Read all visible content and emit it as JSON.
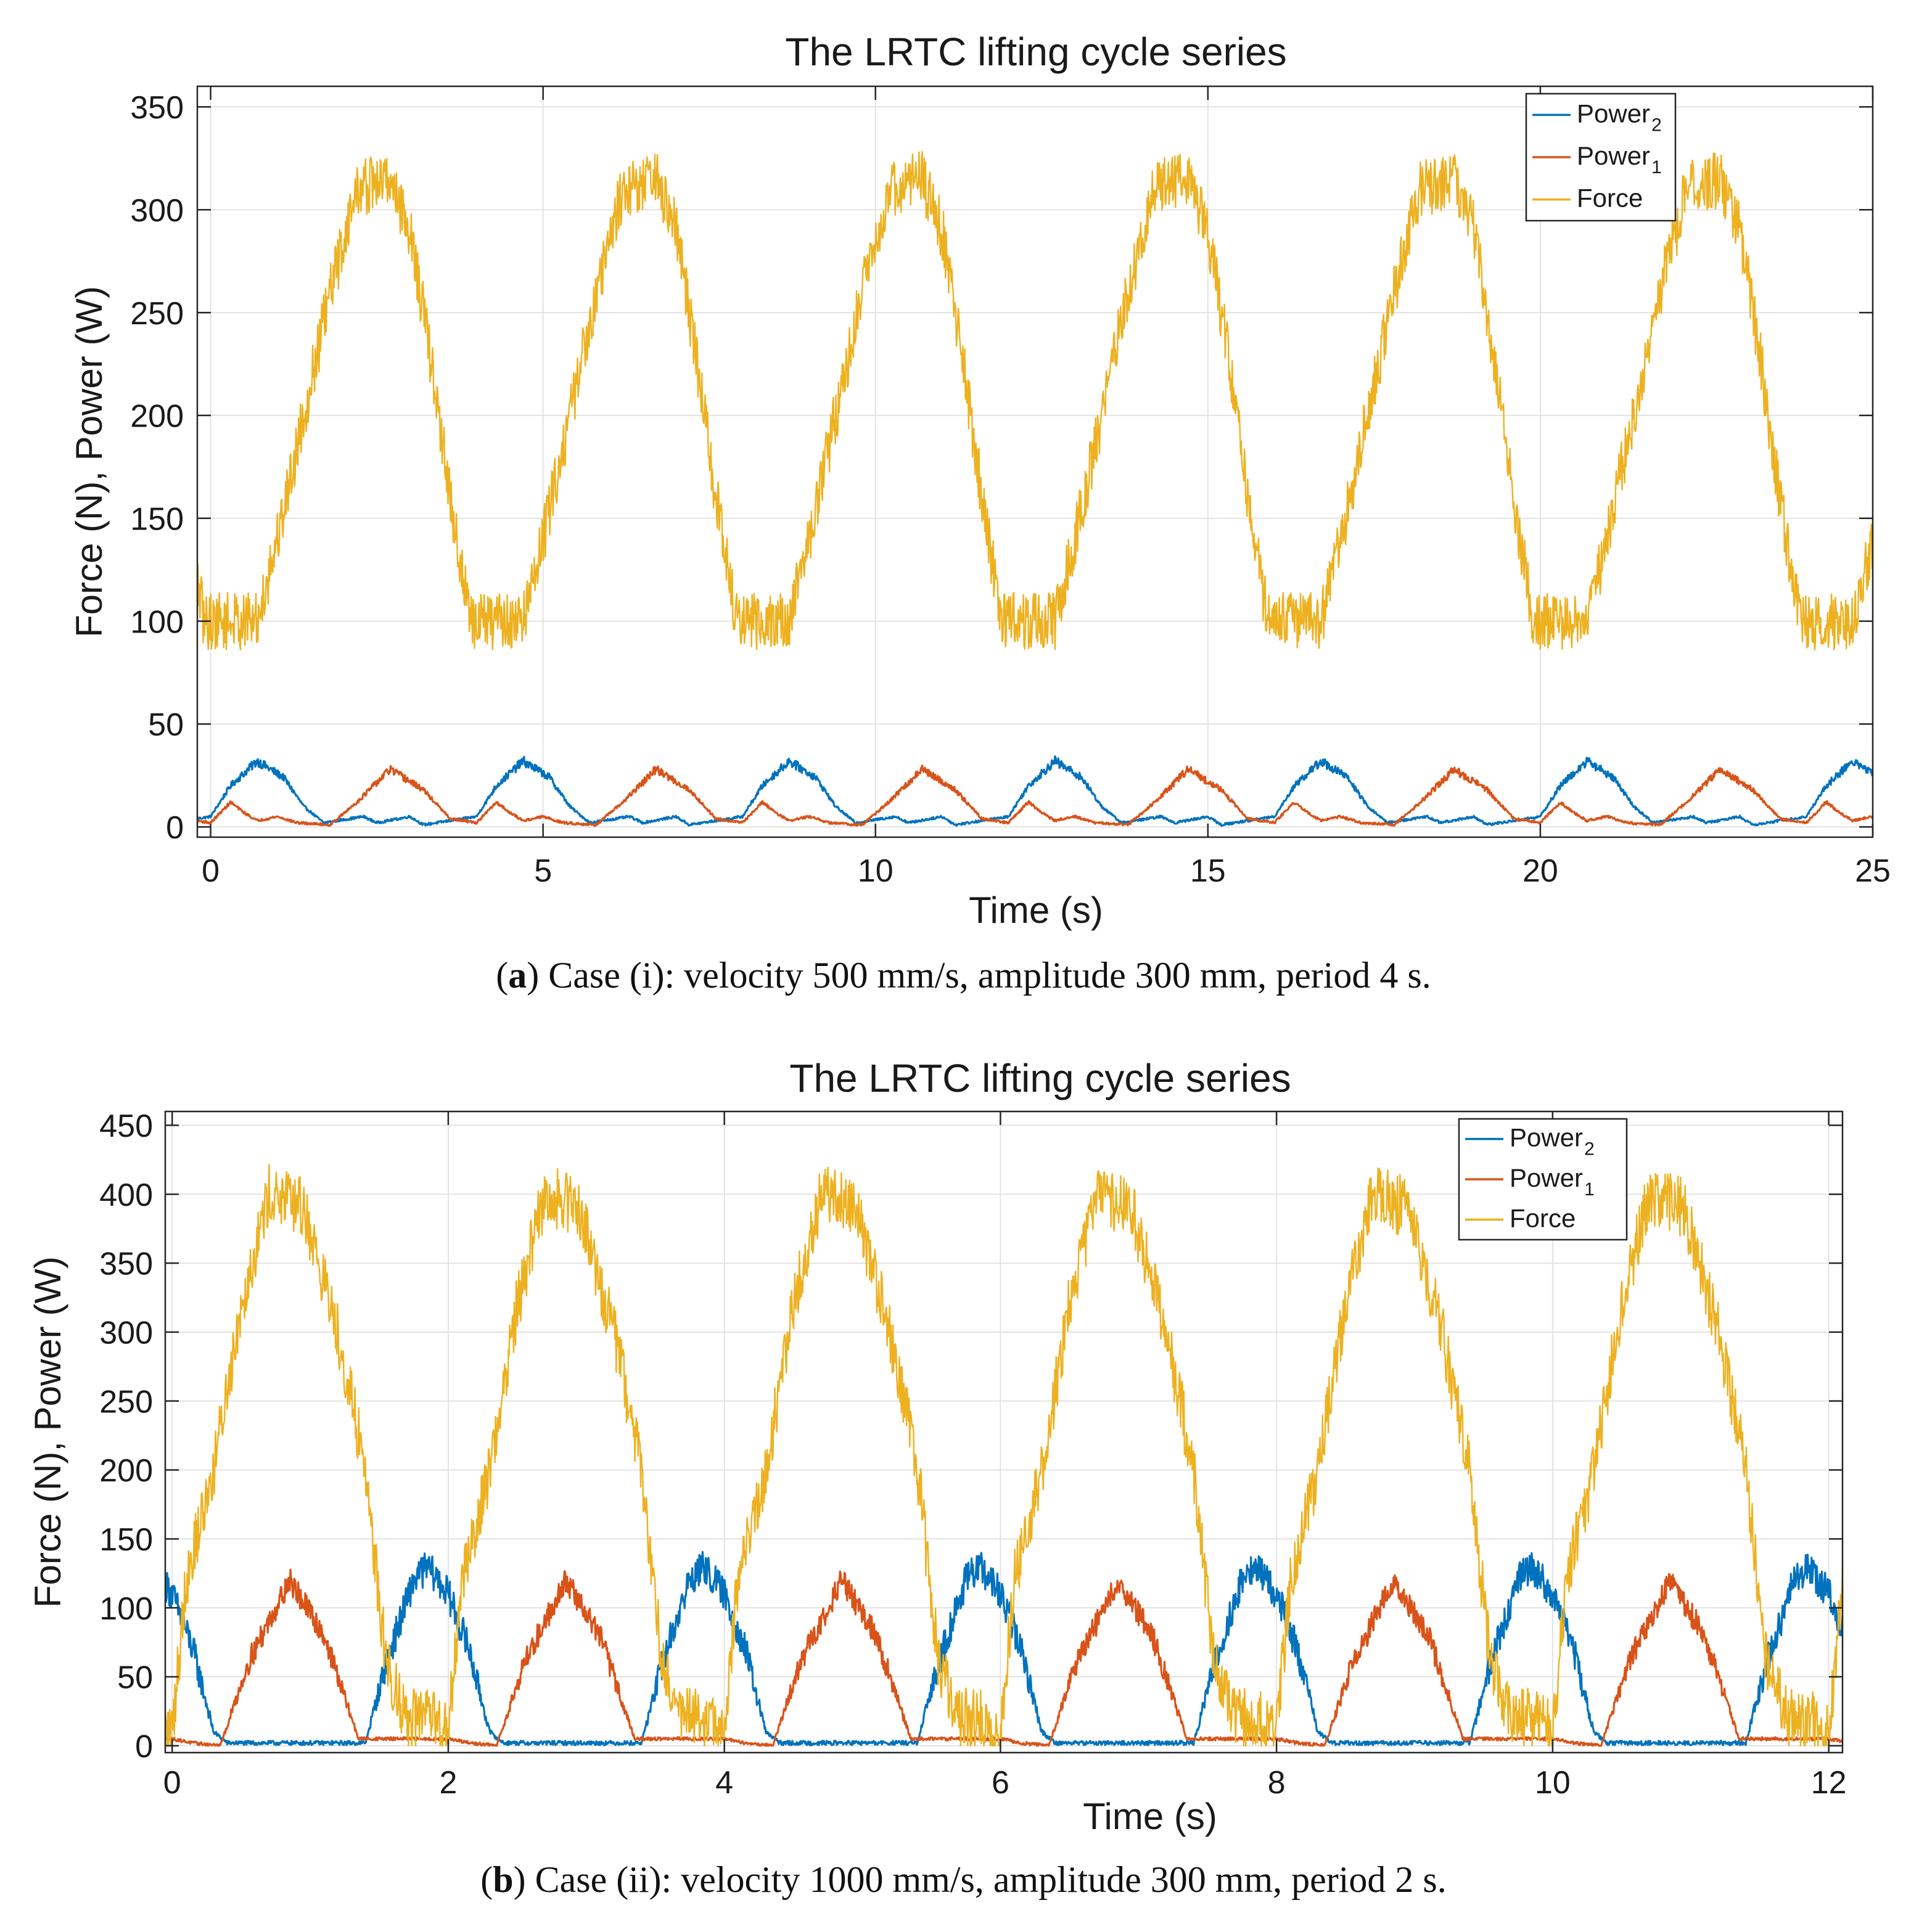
{
  "figure": {
    "captions": [
      {
        "label": "a",
        "text": "Case (i): velocity 500 mm/s, amplitude 300 mm, period 4 s."
      },
      {
        "label": "b",
        "text": "Case (ii): velocity 1000 mm/s, amplitude 300 mm, period 2 s."
      }
    ]
  },
  "colors": {
    "power2": "#0072BD",
    "power1": "#D95319",
    "force": "#EDB120",
    "grid": "#e3e3e3",
    "axis": "#262626"
  },
  "chart_data": [
    {
      "type": "line",
      "title": "The LRTC lifting cycle series",
      "xlabel": "Time (s)",
      "ylabel": "Force (N), Power (W)",
      "xlim": [
        -0.2,
        25
      ],
      "ylim": [
        -5,
        360
      ],
      "xticks": [
        0,
        5,
        10,
        15,
        20,
        25
      ],
      "yticks": [
        0,
        50,
        100,
        150,
        200,
        250,
        300,
        350
      ],
      "grid": true,
      "legend_position": "top-right",
      "legend": [
        {
          "key": "power2",
          "name": "Power",
          "sub": "2"
        },
        {
          "key": "power1",
          "name": "Power",
          "sub": "1"
        },
        {
          "key": "force",
          "name": "Force",
          "sub": ""
        }
      ],
      "series": [
        {
          "name": "Power_2",
          "key": "power2",
          "period": 4,
          "keypoints": [
            [
              0,
              5
            ],
            [
              0.3,
              20
            ],
            [
              0.7,
              32
            ],
            [
              1.1,
              24
            ],
            [
              1.4,
              10
            ],
            [
              1.7,
              2
            ],
            [
              2.3,
              5
            ],
            [
              2.5,
              2
            ],
            [
              3.0,
              5
            ],
            [
              3.2,
              1
            ],
            [
              4.0,
              5
            ]
          ],
          "noise": 3
        },
        {
          "name": "Power_1",
          "key": "power1",
          "period": 4,
          "keypoints": [
            [
              0,
              2
            ],
            [
              0.3,
              12
            ],
            [
              0.5,
              7
            ],
            [
              0.7,
              3
            ],
            [
              1.0,
              5
            ],
            [
              1.3,
              2
            ],
            [
              1.8,
              1
            ],
            [
              2.2,
              12
            ],
            [
              2.7,
              28
            ],
            [
              3.2,
              18
            ],
            [
              3.6,
              4
            ],
            [
              4.0,
              2
            ]
          ],
          "noise": 3
        },
        {
          "name": "Force",
          "key": "force",
          "period": 4,
          "keypoints": [
            [
              0,
              100
            ],
            [
              0.3,
              100
            ],
            [
              0.7,
              100
            ],
            [
              1.0,
              140
            ],
            [
              1.4,
              200
            ],
            [
              1.8,
              260
            ],
            [
              2.2,
              310
            ],
            [
              2.7,
              315
            ],
            [
              3.0,
              290
            ],
            [
              3.3,
              230
            ],
            [
              3.6,
              160
            ],
            [
              3.9,
              100
            ],
            [
              4.0,
              100
            ]
          ],
          "noise": 14
        }
      ]
    },
    {
      "type": "line",
      "title": "The LRTC lifting cycle series",
      "xlabel": "Time (s)",
      "ylabel": "Force (N), Power (W)",
      "xlim": [
        -0.05,
        12.1
      ],
      "ylim": [
        -5,
        460
      ],
      "xticks": [
        0,
        2,
        4,
        6,
        8,
        10,
        12
      ],
      "yticks": [
        0,
        50,
        100,
        150,
        200,
        250,
        300,
        350,
        400,
        450
      ],
      "grid": true,
      "legend_position": "top-right",
      "legend": [
        {
          "key": "power2",
          "name": "Power",
          "sub": "2"
        },
        {
          "key": "power1",
          "name": "Power",
          "sub": "1"
        },
        {
          "key": "force",
          "name": "Force",
          "sub": ""
        }
      ],
      "series": [
        {
          "name": "Power_2",
          "key": "power2",
          "period": 2,
          "keypoints": [
            [
              0,
              110
            ],
            [
              0.15,
              70
            ],
            [
              0.3,
              10
            ],
            [
              0.4,
              2
            ],
            [
              1.4,
              2
            ],
            [
              1.55,
              60
            ],
            [
              1.75,
              120
            ],
            [
              1.85,
              130
            ],
            [
              2.0,
              110
            ]
          ],
          "noise": 8
        },
        {
          "name": "Power_1",
          "key": "power1",
          "period": 2,
          "keypoints": [
            [
              0,
              5
            ],
            [
              0.15,
              2
            ],
            [
              0.35,
              0
            ],
            [
              0.55,
              60
            ],
            [
              0.85,
              120
            ],
            [
              1.1,
              80
            ],
            [
              1.35,
              5
            ],
            [
              1.6,
              5
            ],
            [
              2.0,
              5
            ]
          ],
          "noise": 6
        },
        {
          "name": "Force",
          "key": "force",
          "period": 2,
          "keypoints": [
            [
              0,
              10
            ],
            [
              0.1,
              120
            ],
            [
              0.3,
              200
            ],
            [
              0.5,
              320
            ],
            [
              0.7,
              400
            ],
            [
              0.95,
              390
            ],
            [
              1.2,
              300
            ],
            [
              1.4,
              200
            ],
            [
              1.55,
              60
            ],
            [
              1.7,
              20
            ],
            [
              1.85,
              20
            ],
            [
              2.0,
              10
            ]
          ],
          "noise": 22
        }
      ]
    }
  ]
}
